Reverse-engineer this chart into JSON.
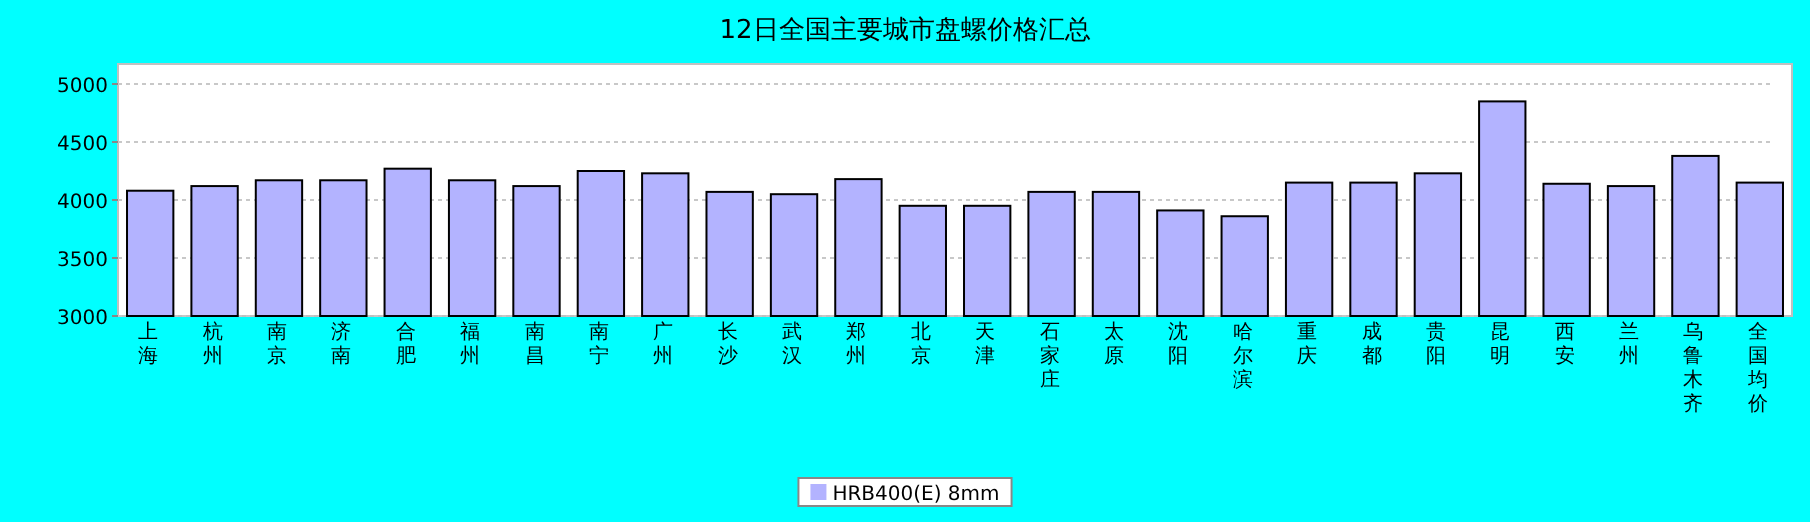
{
  "chart_data": {
    "type": "bar",
    "title": "12日全国主要城市盘螺价格汇总",
    "categories": [
      "上海",
      "杭州",
      "南京",
      "济南",
      "合肥",
      "福州",
      "南昌",
      "南宁",
      "广州",
      "长沙",
      "武汉",
      "郑州",
      "北京",
      "天津",
      "石家庄",
      "太原",
      "沈阳",
      "哈尔滨",
      "重庆",
      "成都",
      "贵阳",
      "昆明",
      "西安",
      "兰州",
      "乌鲁木齐",
      "全国均价"
    ],
    "series": [
      {
        "name": "HRB400(E) 8mm",
        "color": "#b3b3ff",
        "values": [
          4080,
          4120,
          4170,
          4170,
          4270,
          4170,
          4120,
          4250,
          4230,
          4070,
          4050,
          4180,
          3950,
          3950,
          4070,
          4070,
          3910,
          3860,
          4150,
          4150,
          4230,
          4850,
          4140,
          4120,
          4380,
          4150
        ]
      }
    ],
    "ylim": [
      3000,
      5000
    ],
    "yticks": [
      3000,
      3500,
      4000,
      4500,
      5000
    ],
    "grid": "y",
    "legend": "bottom"
  }
}
